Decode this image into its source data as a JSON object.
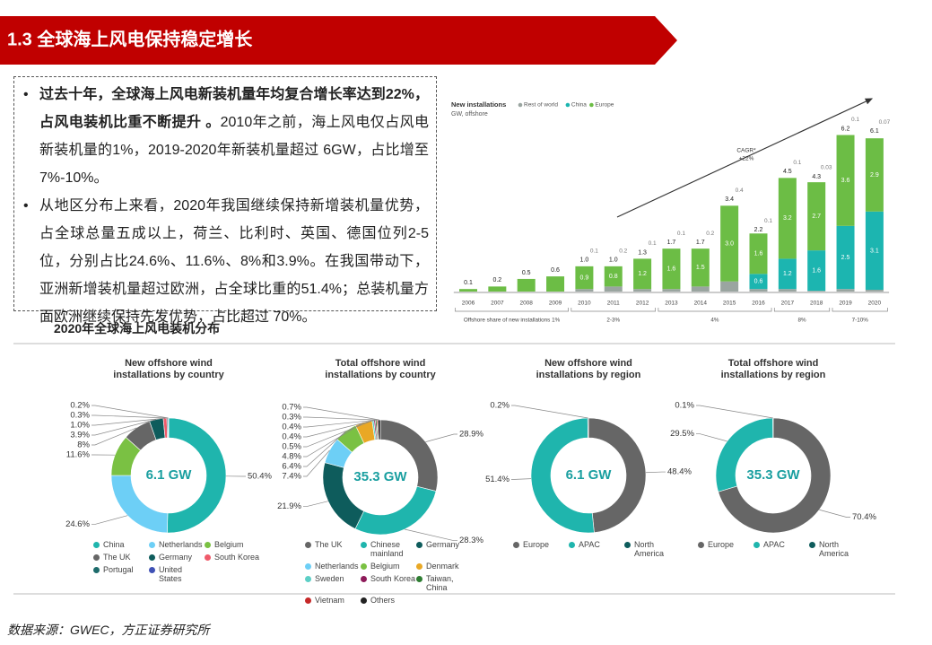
{
  "header": {
    "title": "1.3 全球海上风电保持稳定增长"
  },
  "bullets": [
    {
      "bold": "过去十年，全球海上风电新装机量年均复合增长率达到22%，占风电装机比重不断提升 。",
      "text": "2010年之前，海上风电仅占风电新装机量的1%，2019-2020年新装机量超过 6GW，占比增至7%-10%。"
    },
    {
      "text": "从地区分布上来看，2020年我国继续保持新增装机量优势，占全球总量五成以上，荷兰、比利时、英国、德国位列2-5位，分别占比24.6%、11.6%、8%和3.9%。在我国带动下，亚洲新增装机量超过欧洲，占全球比重的51.4%；总装机量方面欧洲继续保持先发优势，占比超过 70%。"
    }
  ],
  "section_title": "2020年全球海上风电装机分布",
  "chart_data": [
    {
      "type": "bar",
      "stacked": true,
      "title": "New installations",
      "subtitle": "GW, offshore",
      "categories": [
        "2006",
        "2007",
        "2008",
        "2009",
        "2010",
        "2011",
        "2012",
        "2013",
        "2014",
        "2015",
        "2016",
        "2017",
        "2018",
        "2019",
        "2020"
      ],
      "series": [
        {
          "name": "Rest of world",
          "color": "#9aa5a0",
          "values": [
            0,
            0,
            0,
            0,
            0.1,
            0.2,
            0.1,
            0.1,
            0.2,
            0.4,
            0.1,
            0.1,
            0.03,
            0.1,
            0.07
          ],
          "value_labels": [
            null,
            null,
            null,
            null,
            "0.1",
            "0.2",
            "0.1",
            "0.1",
            "0.2",
            "0.4",
            "0.1",
            "0.1",
            "0.03",
            "0.1",
            "0.07"
          ]
        },
        {
          "name": "China",
          "color": "#1cb5b0",
          "values": [
            0,
            0,
            0,
            0,
            0,
            0,
            0,
            0,
            0,
            0,
            0.6,
            1.2,
            1.6,
            2.5,
            3.1
          ],
          "value_labels": [
            null,
            null,
            null,
            null,
            null,
            null,
            null,
            null,
            null,
            null,
            "0.6",
            "1.2",
            "1.6",
            "2.5",
            "3.1"
          ]
        },
        {
          "name": "Europe",
          "color": "#6cbd45",
          "values": [
            0.1,
            0.2,
            0.5,
            0.6,
            0.9,
            0.8,
            1.2,
            1.6,
            1.5,
            3.0,
            1.6,
            3.2,
            2.7,
            3.6,
            2.9
          ],
          "value_labels": [
            null,
            null,
            null,
            null,
            "0.9",
            "0.8",
            "1.2",
            "1.6",
            "1.5",
            "3.0",
            "1.6",
            "3.2",
            "2.7",
            "3.6",
            "2.9"
          ]
        }
      ],
      "totals": [
        0.1,
        0.2,
        0.5,
        0.6,
        1.0,
        1.0,
        1.3,
        1.7,
        1.7,
        3.4,
        2.2,
        4.5,
        4.3,
        6.2,
        6.1
      ],
      "total_labels": [
        "0.1",
        "0.2",
        "0.5",
        "0.6",
        "1.0",
        "1.0",
        "1.3",
        "1.7",
        "1.7",
        "3.4",
        "2.2",
        "4.5",
        "4.3",
        "6.2",
        "6.1"
      ],
      "ylim": [
        0,
        7
      ],
      "annotation": [
        "CAGR*",
        "+22%"
      ],
      "share_groups": [
        {
          "label": "Offshore share of new installations 1%",
          "first": "2006",
          "last": "2009"
        },
        {
          "label": "2-3%",
          "first": "2010",
          "last": "2012"
        },
        {
          "label": "4%",
          "first": "2013",
          "last": "2016"
        },
        {
          "label": "8%",
          "first": "2017",
          "last": "2018"
        },
        {
          "label": "7-10%",
          "first": "2019",
          "last": "2020"
        }
      ]
    },
    {
      "type": "donut",
      "title": "New offshore wind installations by country",
      "center_label": "6.1 GW",
      "categories": [
        "China",
        "Netherlands",
        "Belgium",
        "The UK",
        "Germany",
        "South Korea",
        "Portugal",
        "United States"
      ],
      "values": [
        50.4,
        24.6,
        11.6,
        8,
        3.9,
        1.0,
        0.3,
        0.2
      ],
      "value_labels": [
        "50.4%",
        "24.6%",
        "11.6%",
        "8%",
        "3.9%",
        "1.0%",
        "0.3%",
        "0.2%"
      ],
      "colors": [
        "#1fb5ad",
        "#6dcff6",
        "#7ac143",
        "#666666",
        "#0e5c5c",
        "#ef5a6a",
        "#1d6b6b",
        "#3f51b5"
      ]
    },
    {
      "type": "donut",
      "title": "Total offshore wind installations by country",
      "center_label": "35.3 GW",
      "categories": [
        "The UK",
        "Chinese mainland",
        "Germany",
        "Netherlands",
        "Belgium",
        "Denmark",
        "Sweden",
        "South Korea",
        "Taiwan, China",
        "Vietnam",
        "Others"
      ],
      "values": [
        28.9,
        28.3,
        21.9,
        7.4,
        6.4,
        4.8,
        0.5,
        0.4,
        0.4,
        0.3,
        0.7
      ],
      "value_labels": [
        "28.9%",
        "28.3%",
        "21.9%",
        "7.4%",
        "6.4%",
        "4.8%",
        "0.5%",
        "0.4%",
        "0.4%",
        "0.3%",
        "0.7%"
      ],
      "colors": [
        "#666666",
        "#1fb5ad",
        "#0e5c5c",
        "#6dcff6",
        "#7ac143",
        "#e9a825",
        "#5ccfc6",
        "#8e1b5a",
        "#2e7d32",
        "#c62828",
        "#222222"
      ]
    },
    {
      "type": "donut",
      "title": "New offshore wind installations by region",
      "center_label": "6.1 GW",
      "categories": [
        "Europe",
        "APAC",
        "North America"
      ],
      "values": [
        48.4,
        51.4,
        0.2
      ],
      "value_labels": [
        "48.4%",
        "51.4%",
        "0.2%"
      ],
      "colors": [
        "#666666",
        "#1fb5ad",
        "#0e5c5c"
      ]
    },
    {
      "type": "donut",
      "title": "Total offshore wind installations by region",
      "center_label": "35.3 GW",
      "categories": [
        "Europe",
        "APAC",
        "North America"
      ],
      "values": [
        70.4,
        29.5,
        0.1
      ],
      "value_labels": [
        "70.4%",
        "29.5%",
        "0.1%"
      ],
      "colors": [
        "#666666",
        "#1fb5ad",
        "#0e5c5c"
      ]
    }
  ],
  "source": "数据来源：GWEC，方正证券研究所"
}
